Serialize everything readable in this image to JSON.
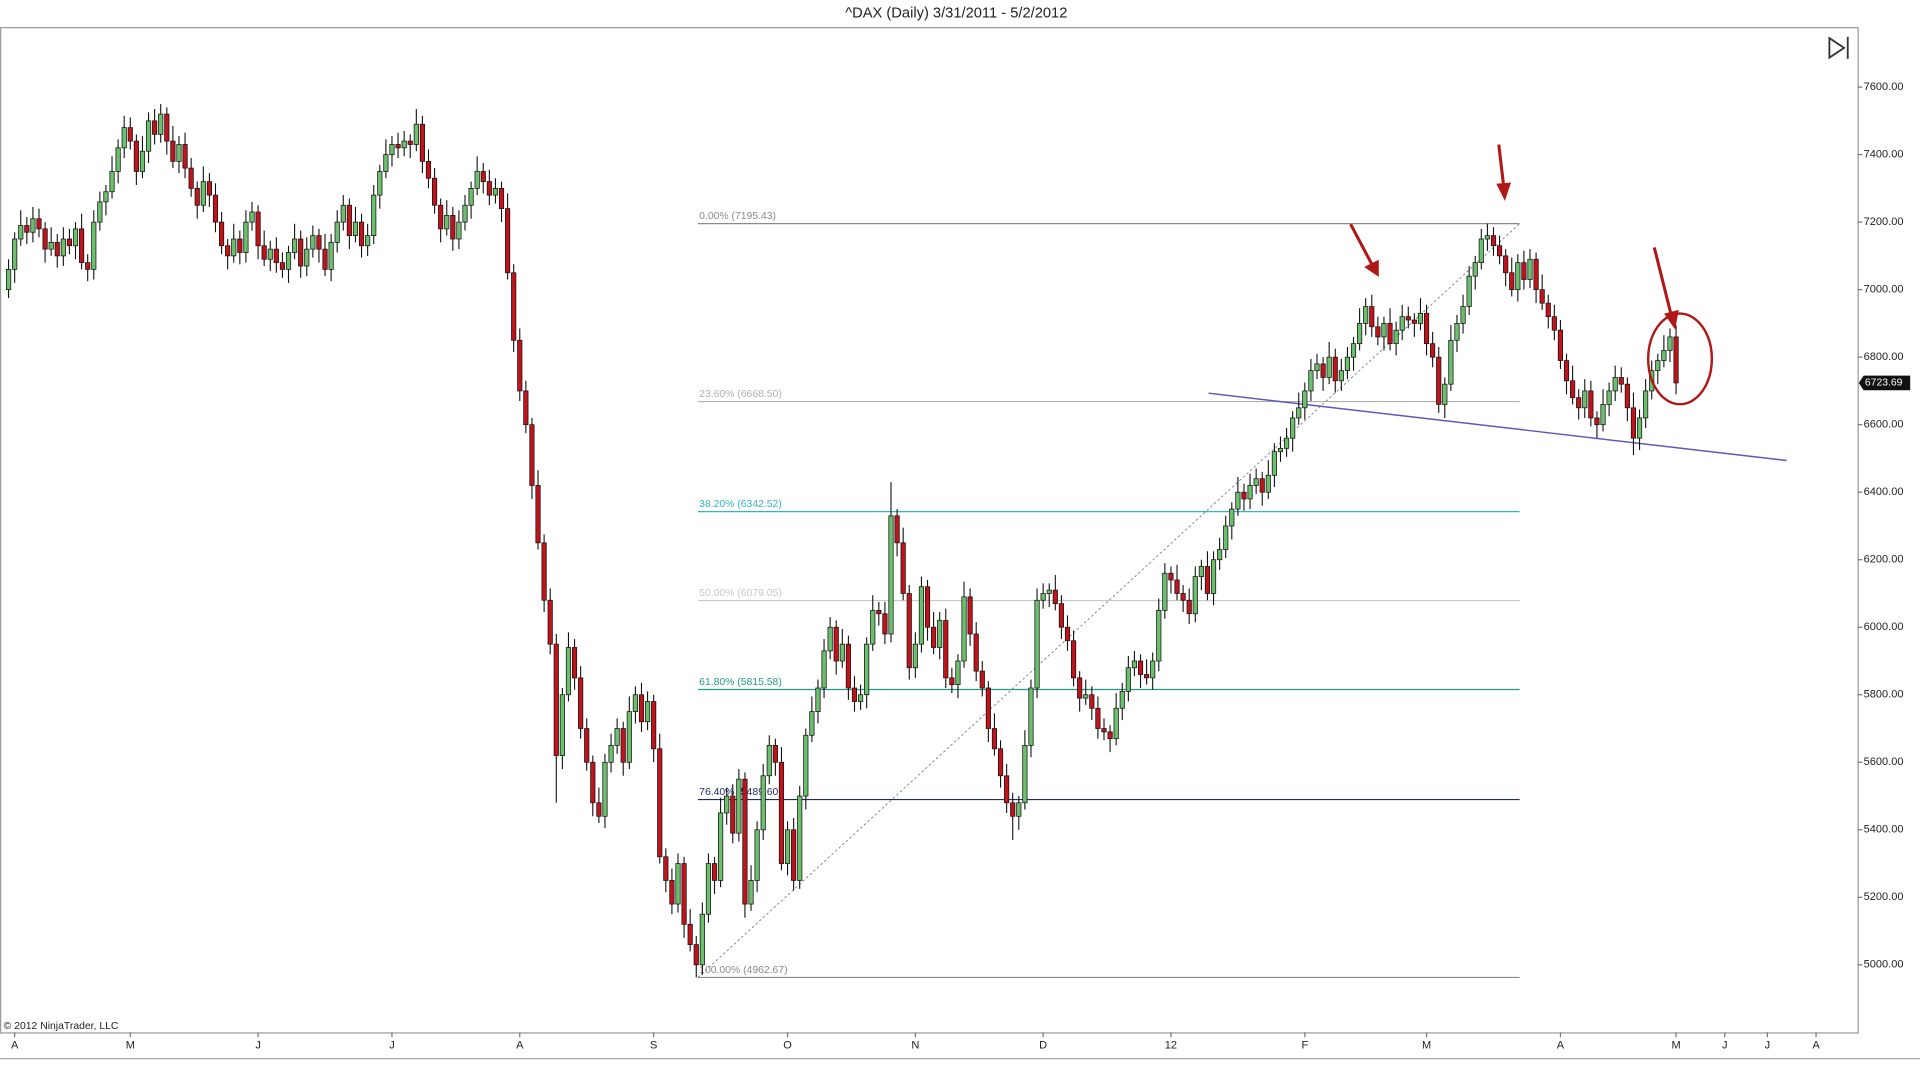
{
  "chart_data": {
    "type": "candlestick",
    "title": "^DAX (Daily)  3/31/2011 - 5/2/2012",
    "copyright": "© 2012 NinjaTrader, LLC",
    "up_color": "#6cbf6c",
    "down_color": "#c0141c",
    "ylim": [
      4800,
      7780
    ],
    "yticks": [
      {
        "value": 5000,
        "label": "5000.00"
      },
      {
        "value": 5200,
        "label": "5200.00"
      },
      {
        "value": 5400,
        "label": "5400.00"
      },
      {
        "value": 5600,
        "label": "5600.00"
      },
      {
        "value": 5800,
        "label": "5800.00"
      },
      {
        "value": 6000,
        "label": "6000.00"
      },
      {
        "value": 6200,
        "label": "6200.00"
      },
      {
        "value": 6400,
        "label": "6400.00"
      },
      {
        "value": 6600,
        "label": "6600.00"
      },
      {
        "value": 6800,
        "label": "6800.00"
      },
      {
        "value": 7000,
        "label": "7000.00"
      },
      {
        "value": 7200,
        "label": "7200.00"
      },
      {
        "value": 7400,
        "label": "7400.00"
      },
      {
        "value": 7600,
        "label": "7600.00"
      }
    ],
    "xticks": [
      {
        "value": 1,
        "label": "A"
      },
      {
        "value": 20,
        "label": "M"
      },
      {
        "value": 41,
        "label": "J"
      },
      {
        "value": 63,
        "label": "J"
      },
      {
        "value": 84,
        "label": "A"
      },
      {
        "value": 106,
        "label": "S"
      },
      {
        "value": 128,
        "label": "O"
      },
      {
        "value": 149,
        "label": "N"
      },
      {
        "value": 170,
        "label": "D"
      },
      {
        "value": 191,
        "label": "12"
      },
      {
        "value": 213,
        "label": "F"
      },
      {
        "value": 233,
        "label": "M"
      },
      {
        "value": 255,
        "label": "A"
      },
      {
        "value": 274,
        "label": "M"
      },
      {
        "value": 282,
        "label": "J"
      },
      {
        "value": 289,
        "label": "J"
      },
      {
        "value": 297,
        "label": "A"
      }
    ],
    "fib_levels": [
      {
        "value": 7195.43,
        "label": "0.00% (7195.43)",
        "color": "#8a8a8a"
      },
      {
        "value": 6668.5,
        "label": "23.60% (6668.50)",
        "color": "#b0b0b0"
      },
      {
        "value": 6342.52,
        "label": "38.20% (6342.52)",
        "color": "#37b4c4"
      },
      {
        "value": 6079.05,
        "label": "50.00% (6079.05)",
        "color": "#c8c8c8"
      },
      {
        "value": 5815.58,
        "label": "61.80% (5815.58)",
        "color": "#239a86"
      },
      {
        "value": 5489.6,
        "label": "76.40% (5489.60)",
        "color": "#1b2a66"
      },
      {
        "value": 4962.67,
        "label": "100.00% (4962.67)",
        "color": "#8a8a8a"
      }
    ],
    "open": [
      7000,
      7060,
      7150,
      7190,
      7170,
      7210,
      7180,
      7120,
      7140,
      7100,
      7150,
      7130,
      7180,
      7080,
      7060,
      7200,
      7260,
      7290,
      7350,
      7420,
      7480,
      7440,
      7350,
      7410,
      7500,
      7460,
      7520,
      7440,
      7380,
      7430,
      7360,
      7300,
      7250,
      7320,
      7280,
      7200,
      7130,
      7100,
      7150,
      7110,
      7200,
      7230,
      7130,
      7090,
      7120,
      7080,
      7060,
      7110,
      7150,
      7070,
      7120,
      7160,
      7120,
      7060,
      7140,
      7200,
      7250,
      7160,
      7200,
      7130,
      7160,
      7280,
      7350,
      7400,
      7430,
      7420,
      7440,
      7430,
      7490,
      7380,
      7330,
      7250,
      7180,
      7220,
      7150,
      7200,
      7250,
      7300,
      7350,
      7320,
      7280,
      7300,
      7240,
      7050,
      6850,
      6700,
      6600,
      6420,
      6250,
      6080,
      5950,
      5620,
      5800,
      5940,
      5850,
      5700,
      5600,
      5480,
      5440,
      5600,
      5650,
      5700,
      5600,
      5750,
      5800,
      5720,
      5780,
      5640,
      5320,
      5250,
      5180,
      5300,
      5120,
      5060,
      5000,
      5150,
      5300,
      5250,
      5450,
      5500,
      5390,
      5550,
      5180,
      5250,
      5400,
      5560,
      5650,
      5600,
      5300,
      5400,
      5250,
      5500,
      5680,
      5750,
      5820,
      5930,
      6000,
      5900,
      5950,
      5820,
      5780,
      5800,
      5950,
      6050,
      6040,
      5980,
      6330,
      6250,
      6100,
      5880,
      5950,
      6120,
      6000,
      5940,
      6020,
      5850,
      5830,
      5900,
      6090,
      5980,
      5870,
      5820,
      5700,
      5640,
      5560,
      5480,
      5440,
      5480,
      5650,
      5820,
      6080,
      6100,
      6110,
      6070,
      6000,
      5960,
      5850,
      5790,
      5800,
      5760,
      5700,
      5690,
      5670,
      5760,
      5810,
      5880,
      5900,
      5860,
      5850,
      5900,
      6050,
      6160,
      6140,
      6100,
      6080,
      6040,
      6150,
      6180,
      6100,
      6200,
      6230,
      6300,
      6350,
      6400,
      6380,
      6420,
      6440,
      6400,
      6450,
      6520,
      6530,
      6560,
      6620,
      6650,
      6700,
      6760,
      6780,
      6740,
      6800,
      6730,
      6760,
      6800,
      6840,
      6900,
      6950,
      6890,
      6860,
      6900,
      6840,
      6880,
      6920,
      6910,
      6900,
      6930,
      6840,
      6800,
      6660,
      6720,
      6850,
      6900,
      6950,
      7040,
      7080,
      7150,
      7160,
      7130,
      7100,
      7050,
      7000,
      7080,
      7030,
      7090,
      7000,
      6960,
      6920,
      6880,
      6790,
      6730,
      6680,
      6650,
      6700,
      6620,
      6600,
      6660,
      6700,
      6740,
      6720,
      6650,
      6560,
      6620,
      6700,
      6760,
      6790,
      6820,
      6860
    ],
    "high": [
      7090,
      7170,
      7235,
      7215,
      7245,
      7240,
      7200,
      7185,
      7165,
      7185,
      7180,
      7200,
      7225,
      7105,
      7235,
      7290,
      7310,
      7395,
      7445,
      7515,
      7510,
      7460,
      7455,
      7525,
      7535,
      7550,
      7540,
      7485,
      7455,
      7465,
      7390,
      7320,
      7365,
      7345,
      7315,
      7230,
      7150,
      7195,
      7175,
      7235,
      7260,
      7250,
      7175,
      7145,
      7155,
      7110,
      7130,
      7195,
      7175,
      7155,
      7190,
      7180,
      7165,
      7165,
      7235,
      7280,
      7270,
      7245,
      7225,
      7195,
      7310,
      7370,
      7445,
      7455,
      7465,
      7470,
      7460,
      7535,
      7515,
      7415,
      7360,
      7270,
      7265,
      7245,
      7235,
      7280,
      7320,
      7395,
      7375,
      7355,
      7330,
      7320,
      7285,
      7075,
      6885,
      6730,
      6620,
      6465,
      6275,
      6115,
      5980,
      5820,
      5985,
      5965,
      5885,
      5730,
      5620,
      5525,
      5625,
      5685,
      5730,
      5720,
      5795,
      5825,
      5835,
      5810,
      5800,
      5685,
      5345,
      5285,
      5330,
      5320,
      5165,
      5085,
      5185,
      5330,
      5320,
      5495,
      5525,
      5535,
      5580,
      5570,
      5295,
      5425,
      5595,
      5680,
      5670,
      5645,
      5425,
      5435,
      5530,
      5700,
      5795,
      5845,
      5965,
      6030,
      6020,
      5995,
      5975,
      5855,
      5830,
      5970,
      6095,
      6075,
      6075,
      6430,
      6350,
      6295,
      6125,
      5985,
      6150,
      6140,
      6045,
      6045,
      6055,
      5880,
      5920,
      6135,
      6115,
      6015,
      5900,
      5840,
      5745,
      5665,
      5595,
      5510,
      5500,
      5695,
      5845,
      6115,
      6130,
      6130,
      6155,
      6095,
      6035,
      5990,
      5870,
      5845,
      5825,
      5795,
      5730,
      5710,
      5805,
      5835,
      5915,
      5930,
      5920,
      5905,
      5925,
      6085,
      6190,
      6180,
      6185,
      6125,
      6115,
      6180,
      6200,
      6225,
      6225,
      6265,
      6330,
      6370,
      6445,
      6425,
      6455,
      6470,
      6460,
      6495,
      6545,
      6565,
      6590,
      6640,
      6695,
      6725,
      6795,
      6810,
      6800,
      6845,
      6825,
      6795,
      6830,
      6860,
      6945,
      6975,
      6985,
      6920,
      6920,
      6945,
      6905,
      6955,
      6950,
      6930,
      6975,
      6955,
      6875,
      6830,
      6740,
      6895,
      6925,
      6985,
      7070,
      7100,
      7180,
      7195.43,
      7185,
      7160,
      7120,
      7095,
      7105,
      7115,
      7120,
      7110,
      7045,
      6985,
      6955,
      6910,
      6810,
      6775,
      6705,
      6735,
      6730,
      6640,
      6705,
      6725,
      6775,
      6770,
      6740,
      6695,
      6645,
      6735,
      6790,
      6810,
      6865,
      6885,
      6895
    ],
    "low": [
      6975,
      7020,
      7130,
      7135,
      7140,
      7155,
      7080,
      7100,
      7065,
      7070,
      7105,
      7090,
      7060,
      7025,
      7030,
      7175,
      7220,
      7270,
      7315,
      7390,
      7415,
      7310,
      7330,
      7375,
      7430,
      7435,
      7400,
      7360,
      7345,
      7330,
      7275,
      7210,
      7230,
      7245,
      7170,
      7105,
      7060,
      7080,
      7075,
      7080,
      7175,
      7090,
      7070,
      7055,
      7050,
      7035,
      7020,
      7090,
      7035,
      7040,
      7095,
      7080,
      7040,
      7025,
      7110,
      7175,
      7120,
      7140,
      7095,
      7100,
      7135,
      7240,
      7330,
      7365,
      7390,
      7395,
      7390,
      7410,
      7345,
      7300,
      7225,
      7140,
      7160,
      7115,
      7120,
      7175,
      7210,
      7280,
      7285,
      7250,
      7255,
      7200,
      7030,
      6815,
      6670,
      6575,
      6380,
      6230,
      6045,
      5920,
      5480,
      5580,
      5780,
      5815,
      5670,
      5575,
      5440,
      5420,
      5405,
      5570,
      5625,
      5560,
      5580,
      5715,
      5690,
      5695,
      5600,
      5300,
      5215,
      5150,
      5155,
      5080,
      5040,
      4962.67,
      4970,
      5125,
      5210,
      5230,
      5415,
      5360,
      5365,
      5140,
      5160,
      5215,
      5370,
      5535,
      5560,
      5280,
      5265,
      5220,
      5225,
      5460,
      5660,
      5715,
      5790,
      5905,
      5860,
      5880,
      5785,
      5750,
      5755,
      5760,
      5930,
      6005,
      5950,
      5955,
      6210,
      6080,
      5845,
      5850,
      5925,
      5960,
      5920,
      5905,
      5820,
      5805,
      5790,
      5880,
      5945,
      5840,
      5795,
      5660,
      5620,
      5525,
      5450,
      5370,
      5400,
      5460,
      5615,
      5790,
      6055,
      6060,
      6050,
      5965,
      5930,
      5825,
      5750,
      5770,
      5725,
      5670,
      5665,
      5630,
      5650,
      5725,
      5780,
      5855,
      5820,
      5830,
      5815,
      5870,
      6025,
      6100,
      6080,
      6045,
      6010,
      6015,
      6110,
      6080,
      6065,
      6170,
      6205,
      6260,
      6330,
      6345,
      6350,
      6395,
      6360,
      6380,
      6415,
      6490,
      6505,
      6520,
      6600,
      6615,
      6670,
      6735,
      6700,
      6720,
      6695,
      6700,
      6735,
      6760,
      6820,
      6865,
      6860,
      6835,
      6820,
      6820,
      6805,
      6850,
      6885,
      6860,
      6880,
      6805,
      6770,
      6635,
      6620,
      6700,
      6815,
      6870,
      6925,
      7000,
      7060,
      7115,
      7100,
      7075,
      7010,
      6980,
      6965,
      7000,
      7005,
      6960,
      6940,
      6885,
      6850,
      6765,
      6690,
      6660,
      6615,
      6620,
      6595,
      6560,
      6580,
      6625,
      6670,
      6695,
      6610,
      6510,
      6525,
      6590,
      6675,
      6720,
      6770,
      6785,
      6690
    ],
    "close": [
      7060,
      7150,
      7190,
      7170,
      7210,
      7180,
      7120,
      7140,
      7100,
      7150,
      7130,
      7180,
      7080,
      7060,
      7200,
      7260,
      7290,
      7350,
      7420,
      7480,
      7440,
      7350,
      7410,
      7500,
      7460,
      7520,
      7440,
      7380,
      7430,
      7360,
      7300,
      7250,
      7320,
      7280,
      7200,
      7130,
      7100,
      7150,
      7110,
      7200,
      7230,
      7130,
      7090,
      7120,
      7080,
      7060,
      7110,
      7150,
      7070,
      7120,
      7160,
      7120,
      7060,
      7140,
      7200,
      7250,
      7160,
      7200,
      7130,
      7160,
      7280,
      7350,
      7400,
      7430,
      7420,
      7440,
      7430,
      7490,
      7380,
      7330,
      7250,
      7180,
      7220,
      7150,
      7200,
      7250,
      7300,
      7350,
      7320,
      7280,
      7300,
      7240,
      7050,
      6850,
      6700,
      6600,
      6420,
      6250,
      6080,
      5950,
      5620,
      5800,
      5940,
      5850,
      5700,
      5600,
      5480,
      5440,
      5600,
      5650,
      5700,
      5600,
      5750,
      5800,
      5720,
      5780,
      5640,
      5320,
      5250,
      5180,
      5300,
      5120,
      5060,
      5000,
      5150,
      5300,
      5250,
      5450,
      5500,
      5390,
      5550,
      5180,
      5250,
      5400,
      5560,
      5650,
      5600,
      5300,
      5400,
      5250,
      5500,
      5680,
      5750,
      5820,
      5930,
      6000,
      5900,
      5950,
      5820,
      5780,
      5800,
      5950,
      6050,
      6040,
      5980,
      6330,
      6250,
      6100,
      5880,
      5950,
      6120,
      6000,
      5940,
      6020,
      5850,
      5830,
      5900,
      6090,
      5980,
      5870,
      5820,
      5700,
      5640,
      5560,
      5480,
      5440,
      5480,
      5650,
      5820,
      6080,
      6100,
      6110,
      6070,
      6000,
      5960,
      5850,
      5790,
      5800,
      5760,
      5700,
      5690,
      5670,
      5760,
      5810,
      5880,
      5900,
      5860,
      5850,
      5900,
      6050,
      6160,
      6140,
      6100,
      6080,
      6040,
      6150,
      6180,
      6100,
      6200,
      6230,
      6300,
      6350,
      6400,
      6380,
      6420,
      6440,
      6400,
      6450,
      6520,
      6530,
      6560,
      6620,
      6650,
      6700,
      6760,
      6780,
      6740,
      6800,
      6730,
      6760,
      6800,
      6840,
      6900,
      6950,
      6890,
      6860,
      6900,
      6840,
      6880,
      6920,
      6910,
      6900,
      6930,
      6840,
      6800,
      6660,
      6720,
      6850,
      6900,
      6950,
      7040,
      7080,
      7150,
      7160,
      7130,
      7100,
      7050,
      7000,
      7080,
      7030,
      7090,
      7000,
      6960,
      6920,
      6880,
      6790,
      6730,
      6680,
      6650,
      6700,
      6620,
      6600,
      6660,
      6700,
      6740,
      6720,
      6650,
      6560,
      6620,
      6700,
      6760,
      6790,
      6820,
      6860,
      6723.69
    ]
  }
}
